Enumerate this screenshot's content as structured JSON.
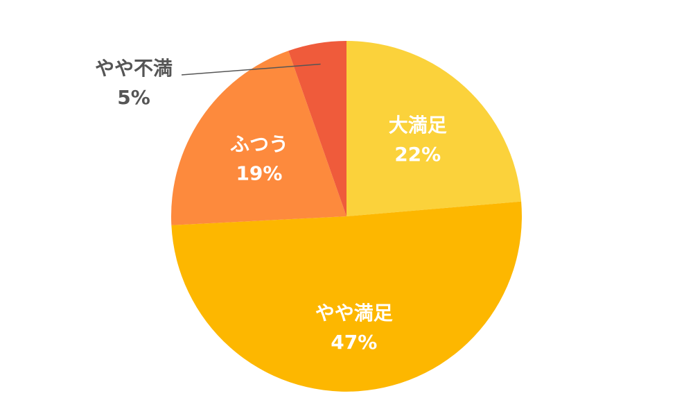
{
  "chart_data": {
    "type": "pie",
    "title": "",
    "start_angle_deg": 0,
    "direction": "clockwise",
    "slices": [
      {
        "label": "大満足",
        "value": 22,
        "value_text": "22%",
        "color": "#FBD23B",
        "label_position": "inside"
      },
      {
        "label": "やや満足",
        "value": 47,
        "value_text": "47%",
        "color": "#FDB700",
        "label_position": "inside"
      },
      {
        "label": "ふつう",
        "value": 19,
        "value_text": "19%",
        "color": "#FD8A3D",
        "label_position": "inside"
      },
      {
        "label": "やや不満",
        "value": 5,
        "value_text": "5%",
        "color": "#EF5B3B",
        "label_position": "outside",
        "leader_line_color": "#555555"
      }
    ]
  }
}
